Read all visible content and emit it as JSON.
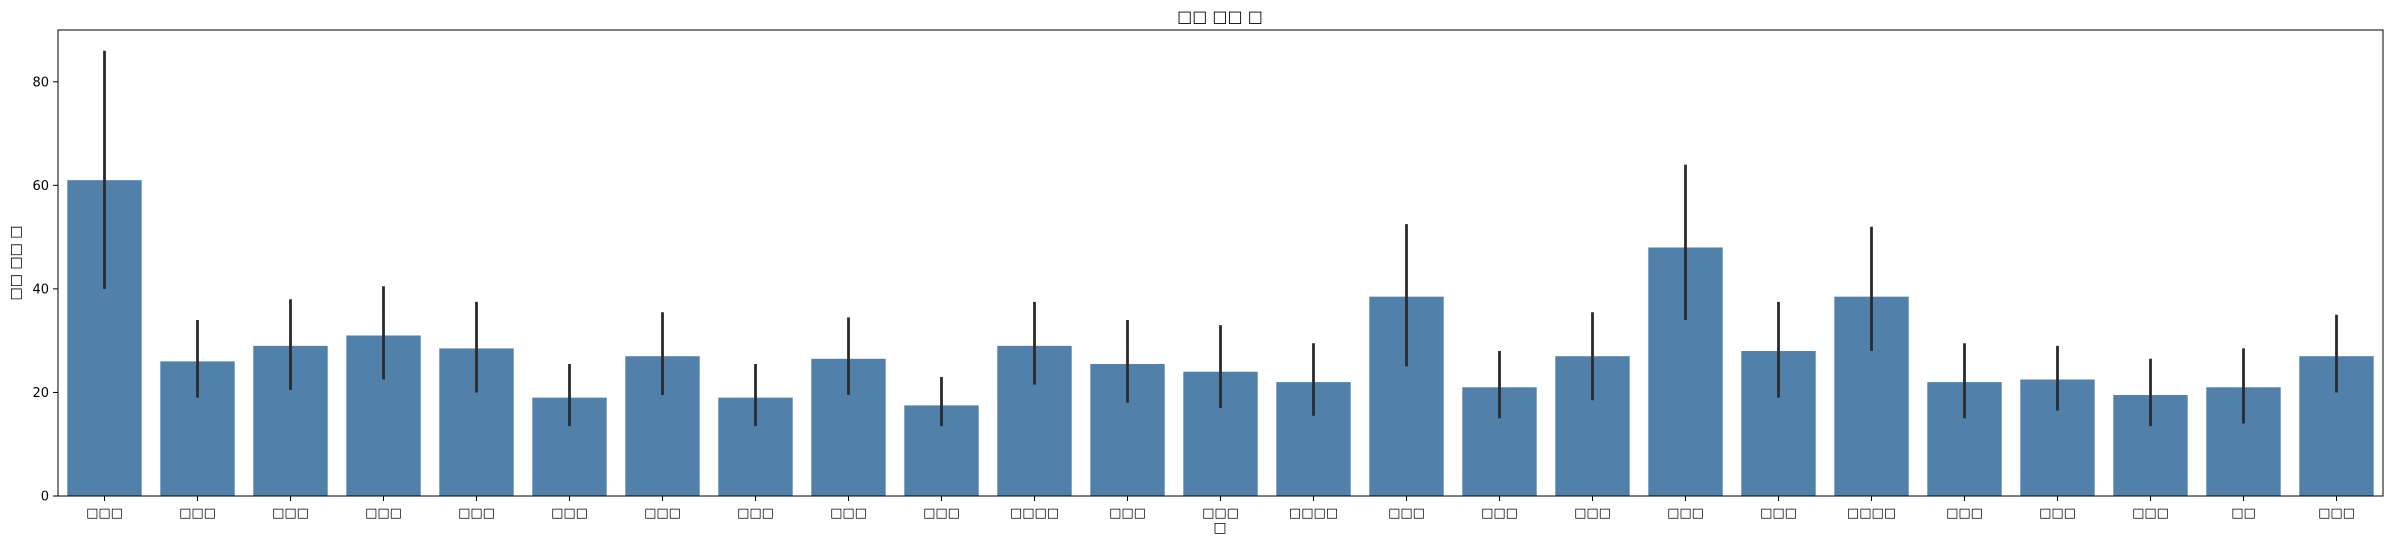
{
  "chart_data": {
    "type": "bar",
    "title": "□□ □□ □",
    "xlabel": "□",
    "ylabel": "□□ □□ □",
    "ylim": [
      0,
      90
    ],
    "yticks": [
      0,
      20,
      40,
      60,
      80
    ],
    "bar_color": "#5181ab",
    "error_color": "#2b2b2b",
    "categories": [
      "□□□",
      "□□□",
      "□□□",
      "□□□",
      "□□□",
      "□□□",
      "□□□",
      "□□□",
      "□□□",
      "□□□",
      "□□□□",
      "□□□",
      "□□□",
      "□□□□",
      "□□□",
      "□□□",
      "□□□",
      "□□□",
      "□□□",
      "□□□□",
      "□□□",
      "□□□",
      "□□□",
      "□□",
      "□□□"
    ],
    "values": [
      61,
      26,
      29,
      31,
      28.5,
      19,
      27,
      19,
      26.5,
      17.5,
      29,
      25.5,
      24,
      22,
      38.5,
      21,
      27,
      48,
      28,
      38.5,
      22,
      22.5,
      19.5,
      21,
      27
    ],
    "error_low": [
      40,
      19,
      20.5,
      22.5,
      20,
      13.5,
      19.5,
      13.5,
      19.5,
      13.5,
      21.5,
      18,
      17,
      15.5,
      25,
      15,
      18.5,
      34,
      19,
      28,
      15,
      16.5,
      13.5,
      14,
      20
    ],
    "error_high": [
      86,
      34,
      38,
      40.5,
      37.5,
      25.5,
      35.5,
      25.5,
      34.5,
      23,
      37.5,
      34,
      33,
      29.5,
      52.5,
      28,
      35.5,
      64,
      37.5,
      52,
      29.5,
      29,
      26.5,
      28.5,
      35
    ]
  }
}
